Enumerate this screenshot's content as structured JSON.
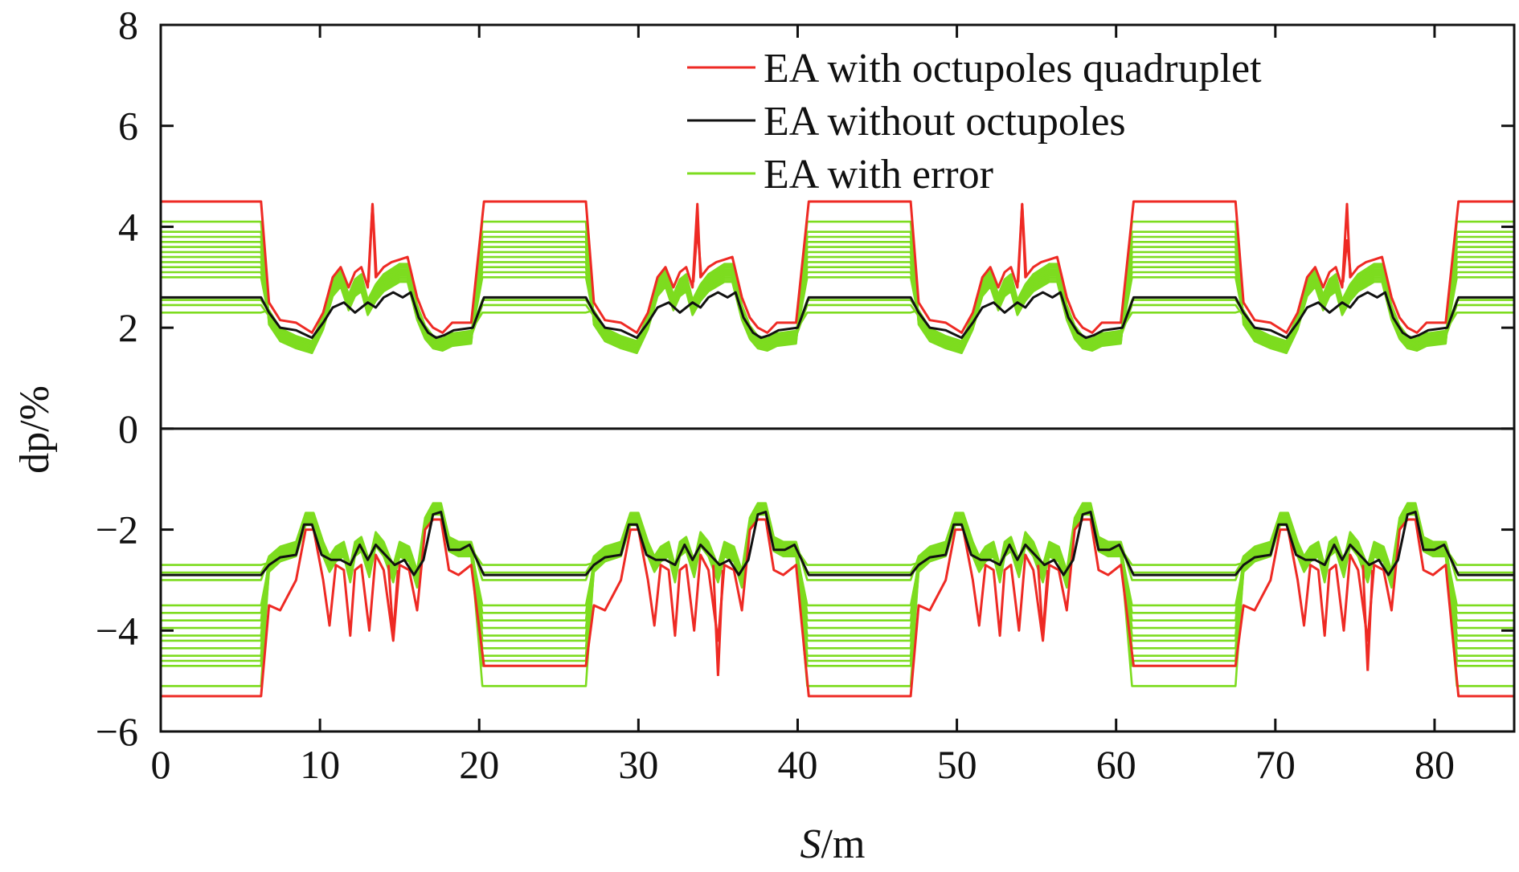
{
  "chart_data": {
    "type": "line",
    "xlabel": "S/m",
    "xlabel_italic_part": "S",
    "xlabel_unit_part": "/m",
    "ylabel": "dp/%",
    "xlim": [
      0,
      85
    ],
    "ylim": [
      -6,
      8
    ],
    "xticks": [
      0,
      10,
      20,
      30,
      40,
      50,
      60,
      70,
      80
    ],
    "yticks": [
      -6,
      -4,
      -2,
      0,
      2,
      4,
      6,
      8
    ],
    "ytick_labels": [
      "−6",
      "−4",
      "−2",
      "0",
      "2",
      "4",
      "6",
      "8"
    ],
    "grid": false,
    "legend_position": "top-right",
    "colors": {
      "red": "#ee2a24",
      "black": "#111111",
      "green": "#7ddc1f",
      "zero_line": "#111111"
    },
    "period": 20.4,
    "period_centers": [
      0,
      20.4,
      40.8,
      61.2,
      81.6
    ],
    "series": [
      {
        "name": "EA with octupoles quadruplet",
        "color": "#ee2a24",
        "upper": {
          "x": [
            0,
            6.3,
            6.8,
            7.5,
            8.5,
            9.5,
            10.2,
            10.8,
            11.3,
            11.8,
            12.2,
            12.6,
            13.0,
            13.3,
            13.5,
            14.0,
            14.5,
            15.0,
            15.5,
            16.1,
            16.6,
            17.1,
            17.7,
            18.3,
            19.5,
            20.4
          ],
          "y": [
            4.5,
            4.5,
            2.5,
            2.15,
            2.1,
            1.9,
            2.3,
            3.0,
            3.2,
            2.8,
            3.1,
            3.2,
            2.8,
            4.45,
            3.0,
            3.2,
            3.3,
            3.35,
            3.4,
            2.6,
            2.2,
            2.0,
            1.9,
            2.1,
            2.1,
            4.5
          ]
        },
        "lower": {
          "x": [
            0,
            6.3,
            6.8,
            7.5,
            8.5,
            9.1,
            9.6,
            10.2,
            10.6,
            11.0,
            11.5,
            11.9,
            12.2,
            12.6,
            13.1,
            13.5,
            14.0,
            14.6,
            15.0,
            15.6,
            16.1,
            16.6,
            17.1,
            17.6,
            18.1,
            18.7,
            19.5,
            20.4
          ],
          "y": [
            -5.3,
            -5.3,
            -3.5,
            -3.6,
            -3.0,
            -2.0,
            -2.0,
            -3.0,
            -3.9,
            -2.7,
            -2.8,
            -4.1,
            -2.8,
            -2.7,
            -4.0,
            -2.5,
            -2.8,
            -4.2,
            -2.7,
            -2.8,
            -3.6,
            -2.0,
            -1.8,
            -1.8,
            -2.8,
            -2.9,
            -2.7,
            -4.7
          ]
        }
      },
      {
        "name": "EA without octupoles",
        "color": "#111111",
        "upper": {
          "x": [
            0,
            6.3,
            6.8,
            7.5,
            8.5,
            9.5,
            10.2,
            10.8,
            11.5,
            12.2,
            13.0,
            13.5,
            14.0,
            14.6,
            15.2,
            15.7,
            16.2,
            16.8,
            17.3,
            17.8,
            18.4,
            19.6,
            20.4
          ],
          "y": [
            2.6,
            2.6,
            2.3,
            2.0,
            1.95,
            1.8,
            2.1,
            2.4,
            2.5,
            2.3,
            2.5,
            2.4,
            2.6,
            2.7,
            2.6,
            2.7,
            2.2,
            1.9,
            1.8,
            1.85,
            1.95,
            2.0,
            2.6
          ]
        },
        "lower": {
          "x": [
            0,
            6.3,
            6.8,
            7.5,
            8.5,
            9.0,
            9.5,
            10.1,
            10.7,
            11.3,
            11.9,
            12.5,
            13.0,
            13.5,
            14.1,
            14.7,
            15.3,
            15.9,
            16.5,
            17.1,
            17.6,
            18.1,
            18.8,
            19.4,
            20.4
          ],
          "y": [
            -2.9,
            -2.9,
            -2.7,
            -2.55,
            -2.5,
            -1.9,
            -1.9,
            -2.5,
            -2.6,
            -2.6,
            -2.7,
            -2.3,
            -2.6,
            -2.3,
            -2.5,
            -2.7,
            -2.6,
            -2.9,
            -2.6,
            -1.7,
            -1.65,
            -2.4,
            -2.4,
            -2.3,
            -2.9
          ]
        }
      },
      {
        "name": "EA with error",
        "color": "#7ddc1f",
        "upper_plateaus": [
          4.1,
          3.9,
          3.8,
          3.7,
          3.6,
          3.5,
          3.4,
          3.3,
          3.2,
          3.1,
          3.0,
          2.55,
          2.45,
          2.3
        ],
        "lower_plateaus": [
          -2.7,
          -2.85,
          -3.0,
          -3.5,
          -3.65,
          -3.8,
          -3.95,
          -4.1,
          -4.2,
          -4.35,
          -4.5,
          -4.6,
          -4.7,
          -5.1
        ],
        "upper_shape": {
          "x": [
            6.3,
            6.8,
            7.5,
            8.5,
            9.5,
            10.2,
            10.8,
            11.3,
            11.8,
            12.2,
            12.6,
            13.0,
            13.5,
            14.0,
            14.5,
            15.0,
            15.5,
            16.1,
            16.6,
            17.1,
            17.7,
            18.3,
            19.5,
            20.4
          ],
          "y": [
            2.6,
            2.3,
            1.95,
            1.8,
            1.7,
            2.2,
            2.9,
            3.1,
            2.6,
            2.9,
            3.0,
            2.5,
            2.8,
            3.0,
            3.1,
            3.2,
            3.2,
            2.4,
            2.0,
            1.8,
            1.75,
            1.85,
            1.9,
            2.6
          ]
        },
        "lower_shape": {
          "x": [
            6.3,
            6.8,
            7.5,
            8.5,
            9.1,
            9.6,
            10.2,
            10.6,
            11.0,
            11.5,
            11.9,
            12.2,
            12.6,
            13.1,
            13.5,
            14.0,
            14.6,
            15.0,
            15.6,
            16.1,
            16.6,
            17.1,
            17.6,
            18.1,
            18.7,
            19.5,
            20.4
          ],
          "y": [
            -2.9,
            -2.7,
            -2.5,
            -2.4,
            -1.8,
            -1.8,
            -2.4,
            -2.7,
            -2.5,
            -2.4,
            -2.9,
            -2.4,
            -2.3,
            -2.8,
            -2.2,
            -2.4,
            -2.9,
            -2.4,
            -2.5,
            -3.0,
            -1.9,
            -1.6,
            -1.6,
            -2.3,
            -2.4,
            -2.4,
            -2.9
          ]
        }
      }
    ],
    "red_spike_peaks": [
      4.45,
      4.0,
      4.45,
      3.75
    ],
    "red_spike_troughs": [
      -4.1,
      -4.9,
      -4.1,
      -4.8
    ]
  }
}
